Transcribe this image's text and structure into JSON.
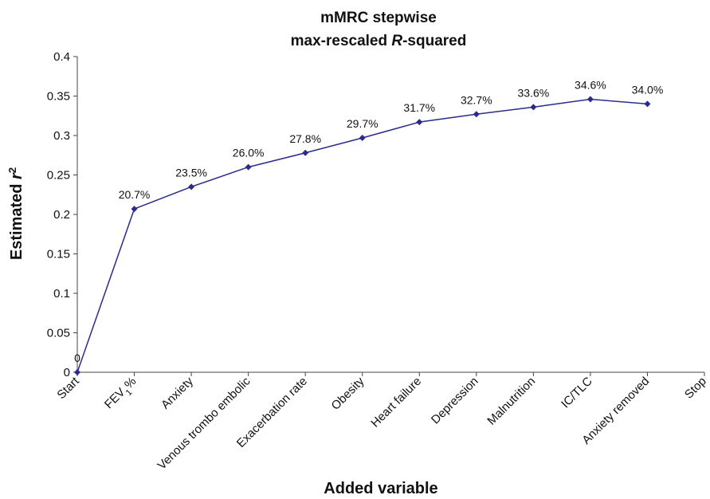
{
  "chart_data": {
    "type": "line",
    "title_line1": "mMRC stepwise",
    "title_line2_pre": "max-rescaled ",
    "title_line2_italic": "R",
    "title_line2_post": "-squared",
    "ylabel_pre": "Estimated ",
    "ylabel_italic": "r",
    "ylabel_sup": "2",
    "xlabel": "Added variable",
    "ylim": [
      0,
      0.4
    ],
    "yticks": [
      0,
      0.05,
      0.1,
      0.15,
      0.2,
      0.25,
      0.3,
      0.35,
      0.4
    ],
    "ytick_labels": [
      "0",
      "0.05",
      "0.1",
      "0.15",
      "0.2",
      "0.25",
      "0.3",
      "0.35",
      "0.4"
    ],
    "categories": [
      {
        "pre": "Start",
        "sub": "",
        "post": ""
      },
      {
        "pre": "FEV",
        "sub": "1",
        "post": "%"
      },
      {
        "pre": "Anxiety",
        "sub": "",
        "post": ""
      },
      {
        "pre": "Venous trombo embolic",
        "sub": "",
        "post": ""
      },
      {
        "pre": "Exacerbation rate",
        "sub": "",
        "post": ""
      },
      {
        "pre": "Obesity",
        "sub": "",
        "post": ""
      },
      {
        "pre": "Heart failure",
        "sub": "",
        "post": ""
      },
      {
        "pre": "Depression",
        "sub": "",
        "post": ""
      },
      {
        "pre": "Malnutrition",
        "sub": "",
        "post": ""
      },
      {
        "pre": "IC/TLC",
        "sub": "",
        "post": ""
      },
      {
        "pre": "Anxiety removed",
        "sub": "",
        "post": ""
      },
      {
        "pre": "Stop",
        "sub": "",
        "post": ""
      }
    ],
    "series": [
      {
        "values": [
          0,
          0.207,
          0.235,
          0.26,
          0.278,
          0.297,
          0.317,
          0.327,
          0.336,
          0.346,
          0.34,
          null
        ],
        "data_labels": [
          "0",
          "20.7%",
          "23.5%",
          "26.0%",
          "27.8%",
          "29.7%",
          "31.7%",
          "32.7%",
          "33.6%",
          "34.6%",
          "34.0%",
          ""
        ]
      }
    ],
    "line_color": "#2b2b8c",
    "marker": "diamond",
    "grid": false,
    "legend": "none"
  }
}
